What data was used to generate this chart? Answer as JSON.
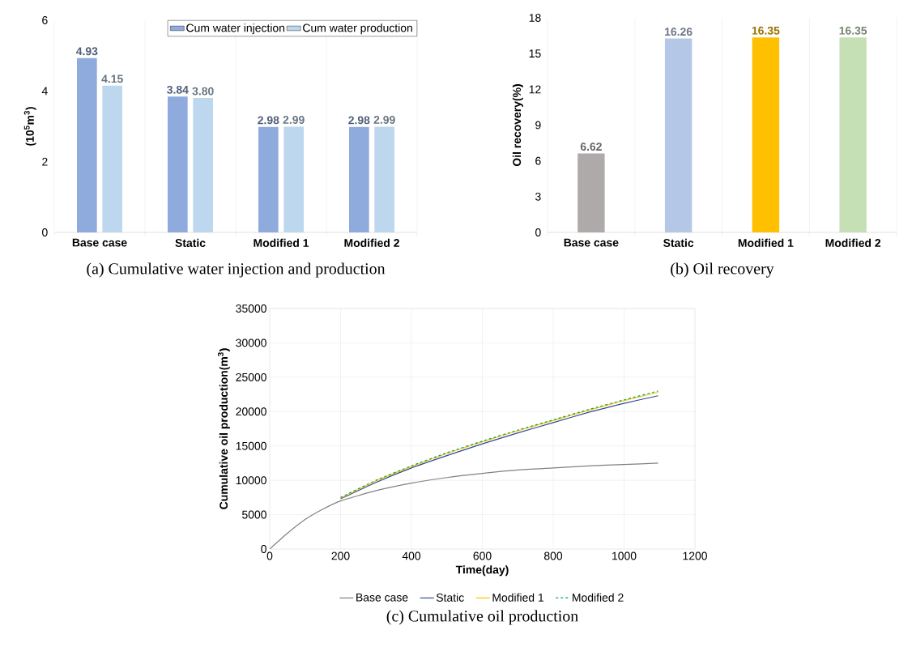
{
  "chart_data": [
    {
      "type": "bar",
      "title": "(a) Cumulative water injection and production",
      "ylabel": "(10$^{5}$m$^{3}$)",
      "categories": [
        "Base case",
        "Static",
        "Modified 1",
        "Modified 2"
      ],
      "series": [
        {
          "name": "Cum water injection",
          "color": "#8faadc",
          "values": [
            4.93,
            3.84,
            2.98,
            2.98
          ],
          "value_labels": [
            "4.93",
            "3.84",
            "2.98",
            "2.98"
          ]
        },
        {
          "name": "Cum water production",
          "color": "#bdd7ee",
          "values": [
            4.15,
            3.8,
            2.99,
            2.99
          ],
          "value_labels": [
            "4.15",
            "3.80",
            "2.99",
            "2.99"
          ]
        }
      ],
      "ylim": [
        0,
        6
      ],
      "yticks": [
        0,
        2,
        4,
        6
      ],
      "grid": "x",
      "legend": "top right"
    },
    {
      "type": "bar",
      "title": "(b) Oil recovery",
      "ylabel": "Oil recovery(%)",
      "categories": [
        "Base case",
        "Static",
        "Modified 1",
        "Modified 2"
      ],
      "values": [
        6.62,
        16.26,
        16.35,
        16.35
      ],
      "value_labels": [
        "6.62",
        "16.26",
        "16.35",
        "16.35"
      ],
      "colors": [
        "#aeaaaa",
        "#b4c7e7",
        "#ffc000",
        "#c5e0b4"
      ],
      "ylim": [
        0,
        18
      ],
      "yticks": [
        0,
        3,
        6,
        9,
        12,
        15,
        18
      ],
      "grid": "x"
    },
    {
      "type": "line",
      "title": "(c) Cumulative oil production",
      "xlabel": "Time(day)",
      "ylabel": "Cumulative oil production(m$^{3}$)",
      "x": [
        0,
        50,
        100,
        150,
        200,
        300,
        400,
        500,
        600,
        700,
        800,
        900,
        1000,
        1096
      ],
      "series": [
        {
          "name": "Base case",
          "color": "#808080",
          "line_style": "solid",
          "values": [
            0,
            2300,
            4300,
            5800,
            7000,
            8500,
            9600,
            10400,
            11000,
            11500,
            11800,
            12100,
            12300,
            12500
          ]
        },
        {
          "name": "Static",
          "color": "#2f4a9e",
          "line_style": "solid",
          "x": [
            200,
            300,
            400,
            500,
            600,
            700,
            800,
            900,
            1000,
            1096
          ],
          "values": [
            7300,
            9700,
            11800,
            13600,
            15300,
            16900,
            18400,
            19900,
            21200,
            22300
          ]
        },
        {
          "name": "Modified 1",
          "color": "#ffc000",
          "line_style": "solid",
          "x": [
            200,
            300,
            400,
            500,
            600,
            700,
            800,
            900,
            1000,
            1096
          ],
          "values": [
            7400,
            9900,
            12000,
            13900,
            15600,
            17200,
            18700,
            20200,
            21600,
            22800
          ]
        },
        {
          "name": "Modified 2",
          "color": "#00a651",
          "line_style": "dashed",
          "x": [
            200,
            300,
            400,
            500,
            600,
            700,
            800,
            900,
            1000,
            1096
          ],
          "values": [
            7500,
            10000,
            12100,
            14000,
            15700,
            17300,
            18800,
            20300,
            21700,
            23000
          ]
        }
      ],
      "xlim": [
        0,
        1200
      ],
      "xticks": [
        0,
        200,
        400,
        600,
        800,
        1000,
        1200
      ],
      "ylim": [
        0,
        35000
      ],
      "yticks": [
        0,
        5000,
        10000,
        15000,
        20000,
        25000,
        30000,
        35000
      ],
      "grid": true,
      "legend": "bottom"
    }
  ]
}
